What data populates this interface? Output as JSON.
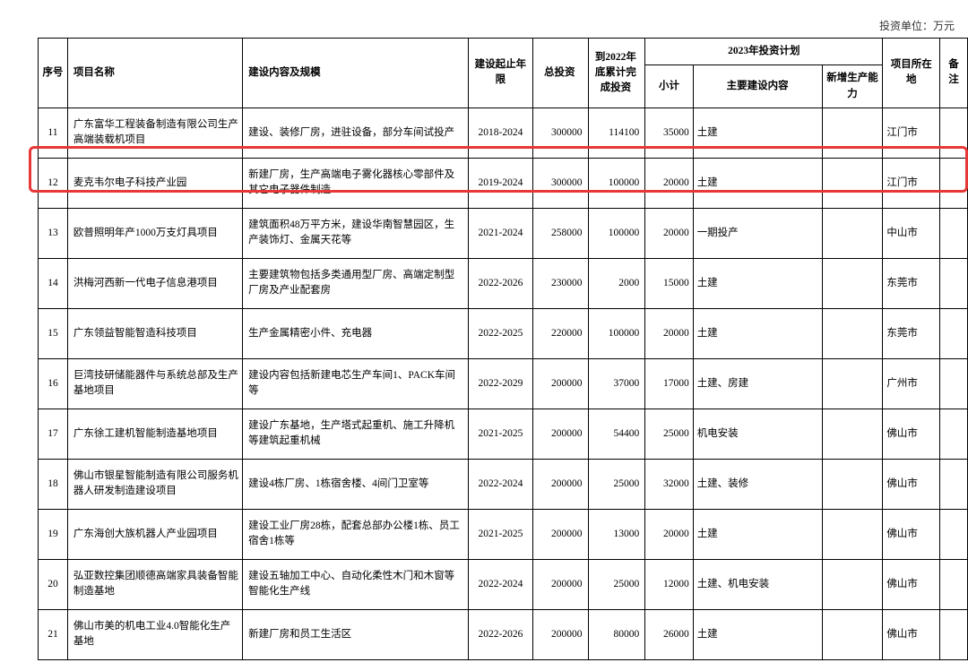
{
  "unit_label": "投资单位：万元",
  "headers": {
    "num": "序号",
    "name": "项目名称",
    "content": "建设内容及规模",
    "period": "建设起止年限",
    "total": "总投资",
    "accum": "到2022年底累计完成投资",
    "plan": "2023年投资计划",
    "sub": "小计",
    "main": "主要建设内容",
    "cap": "新增生产能力",
    "loc": "项目所在地",
    "note": "备注"
  },
  "rows": [
    {
      "num": "11",
      "name": "广东富华工程装备制造有限公司生产高端装载机项目",
      "content": "建设、装修厂房，进驻设备，部分车间试投产",
      "period": "2018-2024",
      "total": "300000",
      "accum": "114100",
      "sub": "35000",
      "main": "土建",
      "cap": "",
      "loc": "江门市",
      "note": ""
    },
    {
      "num": "12",
      "name": "麦克韦尔电子科技产业园",
      "content": "新建厂房，生产高端电子雾化器核心零部件及其它电子器件制造",
      "period": "2019-2024",
      "total": "300000",
      "accum": "100000",
      "sub": "20000",
      "main": "土建",
      "cap": "",
      "loc": "江门市",
      "note": ""
    },
    {
      "num": "13",
      "name": "欧普照明年产1000万支灯具项目",
      "content": "建筑面积48万平方米，建设华南智慧园区，生产装饰灯、金属天花等",
      "period": "2021-2024",
      "total": "258000",
      "accum": "100000",
      "sub": "20000",
      "main": "一期投产",
      "cap": "",
      "loc": "中山市",
      "note": ""
    },
    {
      "num": "14",
      "name": "洪梅河西新一代电子信息港项目",
      "content": "主要建筑物包括多类通用型厂房、高端定制型厂房及产业配套房",
      "period": "2022-2026",
      "total": "230000",
      "accum": "2000",
      "sub": "15000",
      "main": "土建",
      "cap": "",
      "loc": "东莞市",
      "note": ""
    },
    {
      "num": "15",
      "name": "广东领益智能智造科技项目",
      "content": "生产金属精密小件、充电器",
      "period": "2022-2025",
      "total": "220000",
      "accum": "100000",
      "sub": "20000",
      "main": "土建",
      "cap": "",
      "loc": "东莞市",
      "note": ""
    },
    {
      "num": "16",
      "name": "巨湾技研储能器件与系统总部及生产基地项目",
      "content": "建设内容包括新建电芯生产车间1、PACK车间等",
      "period": "2022-2029",
      "total": "200000",
      "accum": "37000",
      "sub": "17000",
      "main": "土建、房建",
      "cap": "",
      "loc": "广州市",
      "note": ""
    },
    {
      "num": "17",
      "name": "广东徐工建机智能制造基地项目",
      "content": "建设广东基地，生产塔式起重机、施工升降机等建筑起重机械",
      "period": "2021-2025",
      "total": "200000",
      "accum": "54400",
      "sub": "25000",
      "main": "机电安装",
      "cap": "",
      "loc": "佛山市",
      "note": ""
    },
    {
      "num": "18",
      "name": "佛山市银星智能制造有限公司服务机器人研发制造建设项目",
      "content": "建设4栋厂房、1栋宿舍楼、4间门卫室等",
      "period": "2022-2024",
      "total": "200000",
      "accum": "25000",
      "sub": "32000",
      "main": "土建、装修",
      "cap": "",
      "loc": "佛山市",
      "note": ""
    },
    {
      "num": "19",
      "name": "广东海创大族机器人产业园项目",
      "content": "建设工业厂房28栋，配套总部办公楼1栋、员工宿舍1栋等",
      "period": "2021-2025",
      "total": "200000",
      "accum": "13000",
      "sub": "20000",
      "main": "土建",
      "cap": "",
      "loc": "佛山市",
      "note": ""
    },
    {
      "num": "20",
      "name": "弘亚数控集团顺德高端家具装备智能制造基地",
      "content": "建设五轴加工中心、自动化柔性木门和木窗等智能化生产线",
      "period": "2022-2024",
      "total": "200000",
      "accum": "25000",
      "sub": "12000",
      "main": "土建、机电安装",
      "cap": "",
      "loc": "佛山市",
      "note": ""
    },
    {
      "num": "21",
      "name": "佛山市美的机电工业4.0智能化生产基地",
      "content": "新建厂房和员工生活区",
      "period": "2022-2026",
      "total": "200000",
      "accum": "80000",
      "sub": "26000",
      "main": "土建",
      "cap": "",
      "loc": "佛山市",
      "note": ""
    }
  ],
  "highlight_row_index": 1,
  "colors": {
    "border": "#000000",
    "highlight": "#e73838",
    "text": "#000000",
    "bg": "#ffffff"
  }
}
